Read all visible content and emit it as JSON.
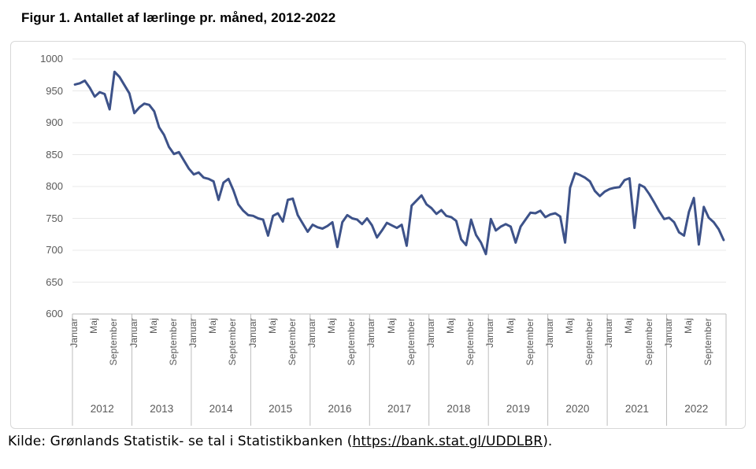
{
  "title": "Figur 1. Antallet af lærlinge pr. måned, 2012-2022",
  "source": {
    "prefix": "Kilde: Grønlands Statistik- se tal i Statistikbanken (",
    "link_text": "https://bank.stat.gl/UDDLBR",
    "suffix": ")."
  },
  "chart_data": {
    "type": "line",
    "title": "Figur 1. Antallet af lærlinge pr. måned, 2012-2022",
    "xlabel": "",
    "ylabel": "",
    "ylim": [
      600,
      1000
    ],
    "yticks": [
      1000,
      950,
      900,
      850,
      800,
      750,
      700,
      650,
      600
    ],
    "grid": "horizontal",
    "legend_position": "none",
    "line_color": "#3d5289",
    "month_tick_labels": [
      "Januar",
      "Maj",
      "September"
    ],
    "month_tick_indices": [
      0,
      4,
      8
    ],
    "years": [
      "2012",
      "2013",
      "2014",
      "2015",
      "2016",
      "2017",
      "2018",
      "2019",
      "2020",
      "2021",
      "2022"
    ],
    "months_per_year": 12,
    "series": [
      {
        "name": "Antallet af lærlinge",
        "values": [
          960,
          962,
          966,
          955,
          941,
          948,
          945,
          921,
          980,
          972,
          959,
          946,
          915,
          924,
          930,
          928,
          918,
          893,
          881,
          862,
          851,
          854,
          841,
          828,
          819,
          822,
          814,
          812,
          808,
          779,
          806,
          812,
          794,
          772,
          762,
          755,
          754,
          750,
          748,
          723,
          754,
          758,
          745,
          779,
          781,
          755,
          742,
          729,
          740,
          736,
          734,
          738,
          744,
          705,
          744,
          755,
          750,
          748,
          741,
          750,
          739,
          720,
          731,
          743,
          739,
          735,
          740,
          707,
          770,
          778,
          786,
          772,
          766,
          757,
          763,
          754,
          752,
          746,
          717,
          708,
          748,
          724,
          712,
          694,
          749,
          731,
          737,
          741,
          737,
          712,
          737,
          748,
          759,
          758,
          762,
          752,
          756,
          758,
          753,
          712,
          798,
          821,
          818,
          814,
          808,
          793,
          785,
          792,
          796,
          798,
          799,
          810,
          813,
          735,
          803,
          799,
          788,
          775,
          761,
          749,
          751,
          744,
          728,
          723,
          760,
          782,
          709,
          768,
          751,
          744,
          733,
          716
        ]
      }
    ]
  }
}
